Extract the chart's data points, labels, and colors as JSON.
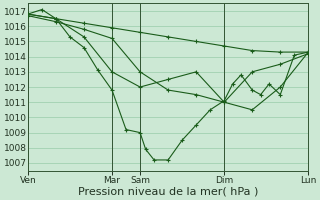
{
  "background_color": "#cce8d4",
  "grid_color": "#99ccaa",
  "line_color": "#1a5c1a",
  "marker_color": "#1a5c1a",
  "xlabel": "Pression niveau de la mer( hPa )",
  "xlabel_fontsize": 8,
  "ylim": [
    1006.5,
    1017.5
  ],
  "yticks": [
    1007,
    1008,
    1009,
    1010,
    1011,
    1012,
    1013,
    1014,
    1015,
    1016,
    1017
  ],
  "tick_fontsize": 6.5,
  "xtick_labels": [
    "Ven",
    "Mar",
    "Sam",
    "Dim",
    "Lun"
  ],
  "xtick_positions": [
    0,
    3,
    4,
    7,
    10
  ],
  "xlim": [
    0,
    10
  ],
  "vlines": [
    0,
    3,
    4,
    7,
    10
  ],
  "series": [
    {
      "x": [
        0,
        1,
        2,
        3,
        4,
        5,
        6,
        7,
        8,
        9,
        10
      ],
      "y": [
        1016.8,
        1016.5,
        1016.2,
        1015.9,
        1015.6,
        1015.3,
        1015.0,
        1014.7,
        1014.4,
        1014.3,
        1014.3
      ]
    },
    {
      "x": [
        0,
        1,
        2,
        3,
        4,
        5,
        6,
        7,
        8,
        9,
        10
      ],
      "y": [
        1016.7,
        1016.3,
        1015.8,
        1015.2,
        1013.0,
        1011.8,
        1011.5,
        1011.0,
        1013.0,
        1013.5,
        1014.2
      ]
    },
    {
      "x": [
        0,
        0.5,
        1,
        1.5,
        2,
        2.5,
        3,
        3.5,
        4,
        4.2,
        4.5,
        5,
        5.5,
        6,
        6.5,
        7,
        7.3,
        7.6,
        8,
        8.3,
        8.6,
        9,
        9.5,
        10
      ],
      "y": [
        1016.8,
        1017.1,
        1016.5,
        1015.3,
        1014.6,
        1013.1,
        1011.8,
        1009.2,
        1009.0,
        1007.9,
        1007.2,
        1007.2,
        1008.5,
        1009.5,
        1010.5,
        1011.1,
        1012.2,
        1012.8,
        1011.8,
        1011.5,
        1012.2,
        1011.5,
        1014.1,
        1014.3
      ]
    },
    {
      "x": [
        0,
        1,
        2,
        3,
        4,
        5,
        6,
        7,
        8,
        9,
        10
      ],
      "y": [
        1016.8,
        1016.5,
        1015.3,
        1013.0,
        1012.0,
        1012.5,
        1013.0,
        1011.0,
        1010.5,
        1012.0,
        1014.3
      ]
    }
  ]
}
